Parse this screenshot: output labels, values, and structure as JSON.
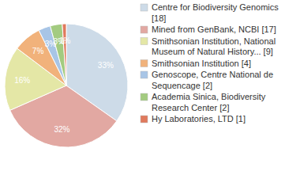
{
  "chart_data": {
    "type": "pie",
    "categories": [
      "Centre for Biodiversity Genomics [18]",
      "Mined from GenBank, NCBI [17]",
      "Smithsonian Institution, National Museum of Natural History... [9]",
      "Smithsonian Institution [4]",
      "Genoscope, Centre National de Sequencage [2]",
      "Academia Sinica, Biodiversity Research Center [2]",
      "Hy Laboratories, LTD [1]"
    ],
    "values": [
      33,
      32,
      16,
      7,
      3,
      3,
      1
    ],
    "value_labels": [
      "33%",
      "32%",
      "16%",
      "7%",
      "3%",
      "3%",
      "1%"
    ],
    "colors": [
      "#cddbe8",
      "#e2a8a2",
      "#e4e7a6",
      "#f1b27b",
      "#a8c5e6",
      "#a3cb80",
      "#e07a5d"
    ],
    "data_labels": true,
    "legend": "right"
  }
}
